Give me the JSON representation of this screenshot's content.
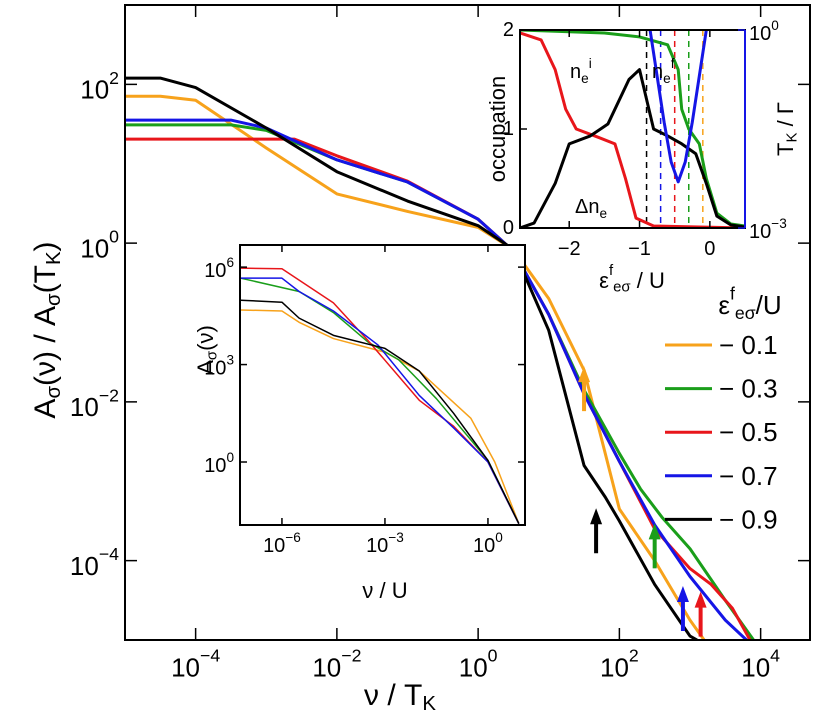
{
  "chart_data": [
    {
      "type": "line",
      "xlog": true,
      "ylog": true,
      "xlabel": [
        [
          "ν / T",
          ""
        ],
        [
          "K",
          "sub"
        ]
      ],
      "ylabel": [
        [
          "A",
          ""
        ],
        [
          "σ",
          "sub"
        ],
        [
          "(ν) / A",
          ""
        ],
        [
          "σ",
          "sub"
        ],
        [
          "(T",
          ""
        ],
        [
          "K",
          "sub"
        ],
        [
          ")",
          ""
        ]
      ],
      "xlim": [
        1e-05,
        50000
      ],
      "ylim": [
        1e-05,
        1000
      ],
      "xticks": [
        {
          "value": 0.0001,
          "label": [
            [
              "10",
              ""
            ],
            [
              "−4",
              "sup"
            ]
          ]
        },
        {
          "value": 0.01,
          "label": [
            [
              "10",
              ""
            ],
            [
              "−2",
              "sup"
            ]
          ]
        },
        {
          "value": 1,
          "label": [
            [
              "10",
              ""
            ],
            [
              "0",
              "sup"
            ]
          ]
        },
        {
          "value": 100,
          "label": [
            [
              "10",
              ""
            ],
            [
              "2",
              "sup"
            ]
          ]
        },
        {
          "value": 10000,
          "label": [
            [
              "10",
              ""
            ],
            [
              "4",
              "sup"
            ]
          ]
        }
      ],
      "yticks": [
        {
          "value": 0.0001,
          "label": [
            [
              "10",
              ""
            ],
            [
              "−4",
              "sup"
            ]
          ]
        },
        {
          "value": 0.01,
          "label": [
            [
              "10",
              ""
            ],
            [
              "−2",
              "sup"
            ]
          ]
        },
        {
          "value": 1,
          "label": [
            [
              "10",
              ""
            ],
            [
              "0",
              "sup"
            ]
          ]
        },
        {
          "value": 100,
          "label": [
            [
              "10",
              ""
            ],
            [
              "2",
              "sup"
            ]
          ]
        }
      ],
      "legend": "right",
      "legend_title": [
        [
          "ε",
          ""
        ],
        [
          "f",
          "sup"
        ],
        [
          "eσ",
          "sub"
        ],
        [
          "/U",
          ""
        ]
      ],
      "series": [
        {
          "name": "− 0.1",
          "color": "#f7a21b",
          "x": [
            1e-05,
            3.16e-05,
            0.0001,
            0.001,
            0.01,
            0.1,
            1,
            3.16,
            10,
            31.6,
            100,
            316,
            1000,
            1585
          ],
          "values": [
            70.8,
            70.8,
            63.1,
            15.8,
            4.17,
            2.51,
            1.58,
            0.832,
            0.2,
            0.0251,
            0.000447,
            0.0001,
            1.78e-05,
            1e-05
          ]
        },
        {
          "name": "− 0.3",
          "color": "#1a9e1a",
          "x": [
            1e-05,
            0.000316,
            0.001,
            0.01,
            0.1,
            1,
            3.16,
            10,
            31.6,
            100,
            200,
            398,
            1000,
            3162,
            7943
          ],
          "values": [
            30.9,
            30.9,
            26.3,
            11.2,
            5.89,
            2,
            0.794,
            0.126,
            0.0141,
            0.00224,
            0.000794,
            0.000355,
            0.000141,
            3.16e-05,
            1e-05
          ]
        },
        {
          "name": "− 0.5",
          "color": "#e8161b",
          "x": [
            1e-05,
            0.00251,
            0.01,
            0.1,
            1,
            3.16,
            10,
            31.6,
            100,
            316,
            1000,
            1995,
            3981,
            7079
          ],
          "values": [
            20.4,
            20.4,
            12.6,
            6.03,
            2,
            0.794,
            0.126,
            0.0126,
            0.00178,
            0.000251,
            7.94e-05,
            5.01e-05,
            2.51e-05,
            1e-05
          ]
        },
        {
          "name": "− 0.7",
          "color": "#1515e6",
          "x": [
            1e-05,
            0.000316,
            0.001,
            0.01,
            0.1,
            1,
            3.16,
            10,
            31.6,
            100,
            316,
            1000,
            3162,
            6310
          ],
          "values": [
            35.5,
            35.5,
            28.2,
            11.2,
            5.89,
            2,
            0.794,
            0.126,
            0.0126,
            0.00178,
            0.000282,
            6.31e-05,
            1.78e-05,
            1e-05
          ]
        },
        {
          "name": "− 0.9",
          "color": "#000000",
          "x": [
            1e-05,
            3.16e-05,
            0.0001,
            0.001,
            0.01,
            0.1,
            1,
            3.16,
            10,
            31.6,
            63.1,
            100,
            316,
            1000,
            1259
          ],
          "values": [
            120,
            120,
            91.2,
            28.2,
            7.94,
            3.39,
            1.66,
            0.832,
            0.0794,
            0.00158,
            0.000631,
            0.000316,
            5.01e-05,
            1.12e-05,
            1e-05
          ]
        }
      ],
      "arrows": [
        {
          "color": "#f7a21b",
          "x": 31.6,
          "y": 0.0282
        },
        {
          "color": "#000000",
          "x": 46.8,
          "y": 0.000457
        },
        {
          "color": "#1a9e1a",
          "x": 316,
          "y": 0.000295
        },
        {
          "color": "#1515e6",
          "x": 794,
          "y": 4.79e-05
        },
        {
          "color": "#e8161b",
          "x": 1413,
          "y": 4.07e-05
        }
      ]
    },
    {
      "type": "line",
      "xlog": true,
      "ylog": true,
      "xlabel": [
        [
          "ν / U",
          ""
        ]
      ],
      "ylabel": [
        [
          "A",
          ""
        ],
        [
          "σ",
          "sub"
        ],
        [
          "(ν)",
          ""
        ]
      ],
      "xlim": [
        6e-08,
        12
      ],
      "ylim": [
        0.0115,
        4800000
      ],
      "xticks": [
        {
          "value": 1e-06,
          "label": [
            [
              "10",
              ""
            ],
            [
              "−6",
              "sup"
            ]
          ]
        },
        {
          "value": 0.001,
          "label": [
            [
              "10",
              ""
            ],
            [
              "−3",
              "sup"
            ]
          ]
        },
        {
          "value": 1,
          "label": [
            [
              "10",
              ""
            ],
            [
              "0",
              "sup"
            ]
          ]
        }
      ],
      "yticks": [
        {
          "value": 1,
          "label": [
            [
              "10",
              ""
            ],
            [
              "0",
              "sup"
            ]
          ]
        },
        {
          "value": 1000,
          "label": [
            [
              "10",
              ""
            ],
            [
              "3",
              "sup"
            ]
          ]
        },
        {
          "value": 1000000,
          "label": [
            [
              "10",
              ""
            ],
            [
              "6",
              "sup"
            ]
          ]
        }
      ],
      "series": [
        {
          "color": "#f7a21b",
          "x": [
            6.31e-08,
            1e-06,
            3.16e-06,
            3.16e-05,
            0.001,
            0.01,
            0.316,
            1.58,
            7.94
          ],
          "values": [
            47900,
            44700,
            20000,
            6310,
            2400,
            631,
            22.4,
            1,
            0.0126
          ]
        },
        {
          "color": "#1a9e1a",
          "x": [
            6.31e-08,
            3.16e-06,
            3.16e-05,
            0.000316,
            0.00251,
            0.0316,
            1,
            7.94
          ],
          "values": [
            457000,
            178000,
            39800,
            5010,
            1410,
            89.1,
            1.12,
            0.0126
          ]
        },
        {
          "color": "#e8161b",
          "x": [
            6.31e-08,
            1e-06,
            3.16e-06,
            3.16e-05,
            0.000316,
            0.01,
            0.1,
            1,
            7.94
          ],
          "values": [
            933000,
            891000,
            398000,
            79400,
            5620,
            79.4,
            12.6,
            1,
            0.0126
          ]
        },
        {
          "color": "#1515e6",
          "x": [
            6.31e-08,
            1e-06,
            3.16e-06,
            3.16e-05,
            0.000631,
            0.01,
            0.1,
            1,
            7.94
          ],
          "values": [
            457000,
            457000,
            178000,
            44700,
            3980,
            112,
            11.2,
            1,
            0.0126
          ]
        },
        {
          "color": "#000000",
          "x": [
            6.31e-08,
            1e-06,
            3.16e-06,
            3.16e-05,
            0.001,
            0.01,
            0.1,
            1,
            7.94
          ],
          "values": [
            95500,
            83200,
            26900,
            7940,
            3160,
            631,
            31.6,
            1.12,
            0.0126
          ]
        }
      ]
    },
    {
      "type": "line",
      "xlog": false,
      "ylog": false,
      "y2log": true,
      "xlabel": [
        [
          "ε",
          ""
        ],
        [
          "f",
          "sup"
        ],
        [
          "eσ",
          "sub"
        ],
        [
          " / U",
          ""
        ]
      ],
      "ylabel": [
        [
          "occupation",
          ""
        ]
      ],
      "y2label": [
        [
          "T",
          ""
        ],
        [
          "K",
          "sub"
        ],
        [
          " / Γ",
          ""
        ]
      ],
      "y2color": "#1515e6",
      "xlim": [
        -2.7,
        0.5
      ],
      "ylim": [
        0,
        2
      ],
      "y2lim": [
        0.001,
        1
      ],
      "xticks": [
        {
          "value": -2,
          "label": "−2"
        },
        {
          "value": -1,
          "label": "−1"
        },
        {
          "value": 0,
          "label": "0"
        }
      ],
      "yticks": [
        0,
        1,
        2
      ],
      "y2ticks": [
        {
          "value": 0.001,
          "label": [
            [
              "10",
              ""
            ],
            [
              "−3",
              "sup"
            ]
          ]
        },
        {
          "value": 1,
          "label": [
            [
              "10",
              ""
            ],
            [
              "0",
              "sup"
            ]
          ]
        }
      ],
      "vlines": [
        {
          "x": -0.9,
          "color": "#000000"
        },
        {
          "x": -0.7,
          "color": "#1515e6"
        },
        {
          "x": -0.5,
          "color": "#e8161b"
        },
        {
          "x": -0.3,
          "color": "#1a9e1a"
        },
        {
          "x": -0.1,
          "color": "#f7a21b"
        }
      ],
      "series": [
        {
          "color": "#e8161b",
          "x": [
            -2.7,
            -2.4,
            -2.2,
            -2.05,
            -1.9,
            -1.6,
            -1.35,
            -1.2,
            -1.05,
            -0.8,
            0.5
          ],
          "values": [
            1.97,
            1.9,
            1.6,
            1.2,
            1.0,
            0.92,
            0.85,
            0.5,
            0.1,
            0.02,
            0
          ]
        },
        {
          "color": "#1a9e1a",
          "x": [
            -2.7,
            -1.5,
            -1,
            -0.6,
            -0.45,
            -0.4,
            -0.3,
            -0.15,
            -0.05,
            0.1,
            0.3,
            0.5
          ],
          "values": [
            2.0,
            1.97,
            1.93,
            1.85,
            1.6,
            1.2,
            1.0,
            0.85,
            0.5,
            0.15,
            0.04,
            0.02
          ]
        },
        {
          "color": "#000000",
          "x": [
            -2.7,
            -2.5,
            -2.2,
            -2.0,
            -1.7,
            -1.45,
            -1.15,
            -1.0,
            -0.9,
            -0.8,
            -0.6,
            -0.4,
            -0.2,
            -0.05,
            0.1,
            0.3,
            0.5
          ],
          "values": [
            0.0,
            0.05,
            0.45,
            0.85,
            0.93,
            1.05,
            1.5,
            1.6,
            1.3,
            1.0,
            0.93,
            0.85,
            0.75,
            0.45,
            0.12,
            0.03,
            0.01
          ]
        },
        {
          "color": "#1515e6",
          "axis": "y2",
          "x": [
            -0.85,
            -0.75,
            -0.65,
            -0.55,
            -0.45,
            -0.35,
            -0.25,
            -0.15,
            -0.05
          ],
          "values": [
            1,
            0.2,
            0.04,
            0.01,
            0.005,
            0.01,
            0.04,
            0.2,
            1
          ]
        }
      ],
      "annotations": [
        {
          "text": [
            [
              "n",
              ""
            ],
            [
              "e",
              "sub"
            ],
            [
              "i",
              "sup"
            ]
          ],
          "color": "#e8161b"
        },
        {
          "text": [
            [
              "n",
              ""
            ],
            [
              "e",
              "sub"
            ],
            [
              "f",
              "sup"
            ]
          ],
          "color": "#1a9e1a"
        },
        {
          "text": [
            [
              "Δn",
              ""
            ],
            [
              "e",
              "sub"
            ]
          ],
          "color": "#000000"
        }
      ]
    }
  ]
}
